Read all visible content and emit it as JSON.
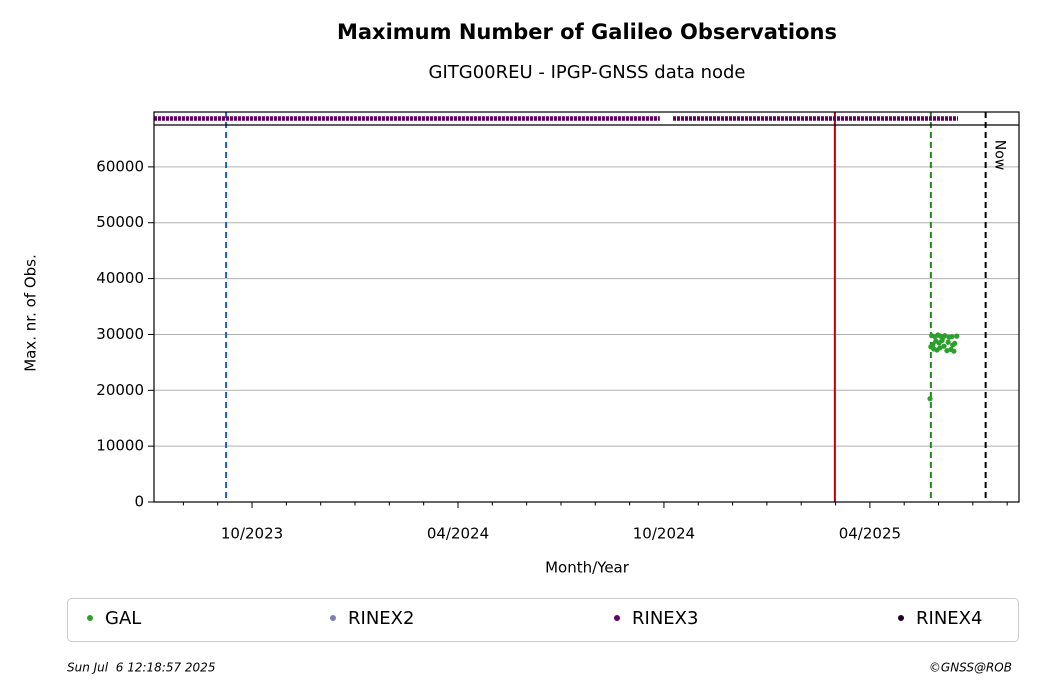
{
  "chart_data": {
    "type": "scatter",
    "title": "Maximum Number of Galileo Observations",
    "subtitle": "GITG00REU - IPGP-GNSS data node",
    "x_label": "Month/Year",
    "y_label": "Max. nr. of Obs.",
    "xlim": [
      2023.512,
      2025.612
    ],
    "ylim": [
      0,
      67500
    ],
    "xticks": [
      {
        "value": 2023.75,
        "label": "10/2023"
      },
      {
        "value": 2024.25,
        "label": "04/2024"
      },
      {
        "value": 2024.75,
        "label": "10/2024"
      },
      {
        "value": 2025.25,
        "label": "04/2025"
      }
    ],
    "xticks_minor": [
      2023.5833,
      2023.6667,
      2023.8333,
      2023.9167,
      2024.0,
      2024.0833,
      2024.1667,
      2024.3333,
      2024.4167,
      2024.5,
      2024.5833,
      2024.6667,
      2024.8333,
      2024.9167,
      2025.0,
      2025.0833,
      2025.1667,
      2025.3333,
      2025.4167,
      2025.5,
      2025.5833
    ],
    "yticks": [
      0,
      10000,
      20000,
      30000,
      40000,
      50000,
      60000
    ],
    "grid": true,
    "series": [
      {
        "name": "GAL",
        "color": "#2ca02c",
        "x": [
          2025.396,
          2025.398,
          2025.4,
          2025.403,
          2025.405,
          2025.408,
          2025.41,
          2025.413,
          2025.415,
          2025.418,
          2025.42,
          2025.422,
          2025.425,
          2025.427,
          2025.43,
          2025.432,
          2025.437,
          2025.44,
          2025.442,
          2025.447,
          2025.449,
          2025.451,
          2025.454,
          2025.456,
          2025.461
        ],
        "values": [
          18500,
          27800,
          29800,
          28200,
          27400,
          29600,
          28800,
          27200,
          29900,
          28500,
          27600,
          29700,
          28900,
          29400,
          27900,
          29800,
          27100,
          28600,
          29500,
          27300,
          29600,
          28100,
          27000,
          28400,
          29700
        ]
      },
      {
        "name": "RINEX2",
        "color": "#7f7fb8",
        "periods": []
      },
      {
        "name": "RINEX3",
        "color": "#660066",
        "periods": [
          [
            2023.512,
            2024.74
          ],
          [
            2024.772,
            2025.464
          ]
        ]
      },
      {
        "name": "RINEX4",
        "color": "#220022",
        "periods": []
      }
    ],
    "vlines": [
      {
        "x": 2023.687,
        "color": "#1f5fbf",
        "style": "dashed"
      },
      {
        "x": 2025.165,
        "color": "#c00000",
        "style": "solid"
      },
      {
        "x": 2025.398,
        "color": "#1a8a1a",
        "style": "dashed"
      },
      {
        "x": 2025.531,
        "color": "#000000",
        "style": "dashed",
        "label": "Now"
      }
    ],
    "footer_left": "Sun Jul  6 12:18:57 2025",
    "footer_right": "©GNSS@ROB"
  }
}
